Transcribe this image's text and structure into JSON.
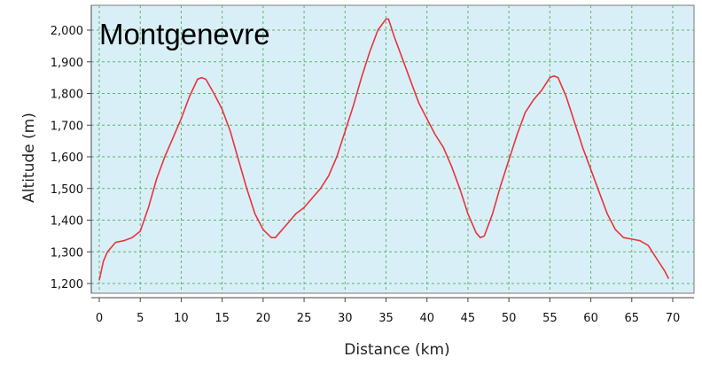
{
  "chart_data": {
    "type": "line",
    "title": "Montgenevre",
    "xlabel": "Distance (km)",
    "ylabel": "Altitude (m)",
    "xlim": [
      0,
      72
    ],
    "ylim": [
      1180,
      2060
    ],
    "x_ticks": [
      0,
      5,
      10,
      15,
      20,
      25,
      30,
      35,
      40,
      45,
      50,
      55,
      60,
      65,
      70
    ],
    "x_tick_labels": [
      "0",
      "5",
      "10",
      "15",
      "20",
      "25",
      "30",
      "35",
      "40",
      "45",
      "50",
      "55",
      "60",
      "65",
      "70"
    ],
    "y_ticks": [
      1200,
      1300,
      1400,
      1500,
      1600,
      1700,
      1800,
      1900,
      2000
    ],
    "y_tick_labels": [
      "1,200",
      "1,300",
      "1,400",
      "1,500",
      "1,600",
      "1,700",
      "1,800",
      "1,900",
      "2,000"
    ],
    "grid": true,
    "colors": {
      "line": "#e8333a",
      "plot_bg": "#d9eff7",
      "grid": "#5fb36a"
    },
    "series": [
      {
        "x": [
          0,
          0.5,
          1,
          2,
          3,
          4,
          5,
          6,
          7,
          8,
          9,
          10,
          11,
          12,
          12.5,
          13,
          14,
          15,
          16,
          17,
          18,
          19,
          20,
          21,
          21.5,
          22,
          23,
          24,
          25,
          26,
          27,
          28,
          29,
          30,
          31,
          32,
          33,
          34,
          35,
          35.3,
          36,
          37,
          38,
          39,
          40,
          41,
          42,
          43,
          44,
          45,
          46,
          46.5,
          47,
          48,
          49,
          50,
          51,
          52,
          53,
          54,
          55,
          55.5,
          56,
          57,
          58,
          59,
          60,
          61,
          62,
          63,
          64,
          65,
          66,
          67,
          68,
          69,
          69.5
        ],
        "y": [
          1210,
          1270,
          1300,
          1330,
          1335,
          1345,
          1365,
          1440,
          1530,
          1600,
          1660,
          1720,
          1790,
          1845,
          1850,
          1845,
          1800,
          1750,
          1680,
          1590,
          1500,
          1420,
          1370,
          1345,
          1345,
          1360,
          1390,
          1420,
          1440,
          1470,
          1500,
          1540,
          1600,
          1680,
          1760,
          1850,
          1930,
          2000,
          2035,
          2035,
          1980,
          1910,
          1840,
          1770,
          1720,
          1670,
          1630,
          1570,
          1500,
          1420,
          1360,
          1345,
          1350,
          1420,
          1510,
          1590,
          1670,
          1740,
          1780,
          1810,
          1850,
          1855,
          1850,
          1790,
          1710,
          1630,
          1560,
          1490,
          1420,
          1370,
          1345,
          1340,
          1335,
          1320,
          1280,
          1240,
          1215
        ]
      }
    ]
  }
}
